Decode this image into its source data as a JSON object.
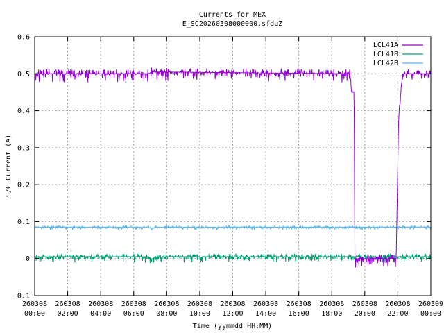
{
  "chart_data": {
    "type": "line",
    "title": "Currents for MEX",
    "subtitle": "E_SC20260308000000.sfduZ",
    "xlabel": "Time (yymmdd HH:MM)",
    "ylabel": "S/C Current (A)",
    "ylim": [
      -0.1,
      0.6
    ],
    "xlim_hours": [
      0,
      24
    ],
    "grid": true,
    "legend_position": "top-right",
    "y_ticks": [
      "-0.1",
      "0",
      "0.1",
      "0.2",
      "0.3",
      "0.4",
      "0.5",
      "0.6"
    ],
    "x_ticks": [
      {
        "date": "260308",
        "time": "00:00"
      },
      {
        "date": "260308",
        "time": "02:00"
      },
      {
        "date": "260308",
        "time": "04:00"
      },
      {
        "date": "260308",
        "time": "06:00"
      },
      {
        "date": "260308",
        "time": "08:00"
      },
      {
        "date": "260308",
        "time": "10:00"
      },
      {
        "date": "260308",
        "time": "12:00"
      },
      {
        "date": "260308",
        "time": "14:00"
      },
      {
        "date": "260308",
        "time": "16:00"
      },
      {
        "date": "260308",
        "time": "18:00"
      },
      {
        "date": "260308",
        "time": "20:00"
      },
      {
        "date": "260308",
        "time": "22:00"
      },
      {
        "date": "260309",
        "time": "00:00"
      }
    ],
    "series": [
      {
        "name": "LCL41A",
        "color": "#9400d3",
        "points": [
          [
            0,
            0.5
          ],
          [
            6.9,
            0.5
          ],
          [
            7.1,
            0.505
          ],
          [
            19.1,
            0.5
          ],
          [
            19.2,
            0.45
          ],
          [
            19.35,
            0.45
          ],
          [
            19.4,
            0.0
          ],
          [
            21.9,
            0.0
          ],
          [
            22.05,
            0.38
          ],
          [
            22.2,
            0.46
          ],
          [
            22.3,
            0.5
          ],
          [
            24,
            0.5
          ]
        ],
        "noise": 0.012
      },
      {
        "name": "LCL41B",
        "color": "#009e73",
        "points": [
          [
            0,
            0.005
          ],
          [
            6.9,
            0.005
          ],
          [
            7.1,
            -0.002
          ],
          [
            7.3,
            0.005
          ],
          [
            24,
            0.005
          ]
        ],
        "noise": 0.008
      },
      {
        "name": "LCL42B",
        "color": "#56b4e9",
        "points": [
          [
            0,
            0.085
          ],
          [
            6.9,
            0.085
          ],
          [
            7.1,
            0.08
          ],
          [
            7.3,
            0.085
          ],
          [
            24,
            0.085
          ]
        ],
        "noise": 0.004
      }
    ]
  }
}
